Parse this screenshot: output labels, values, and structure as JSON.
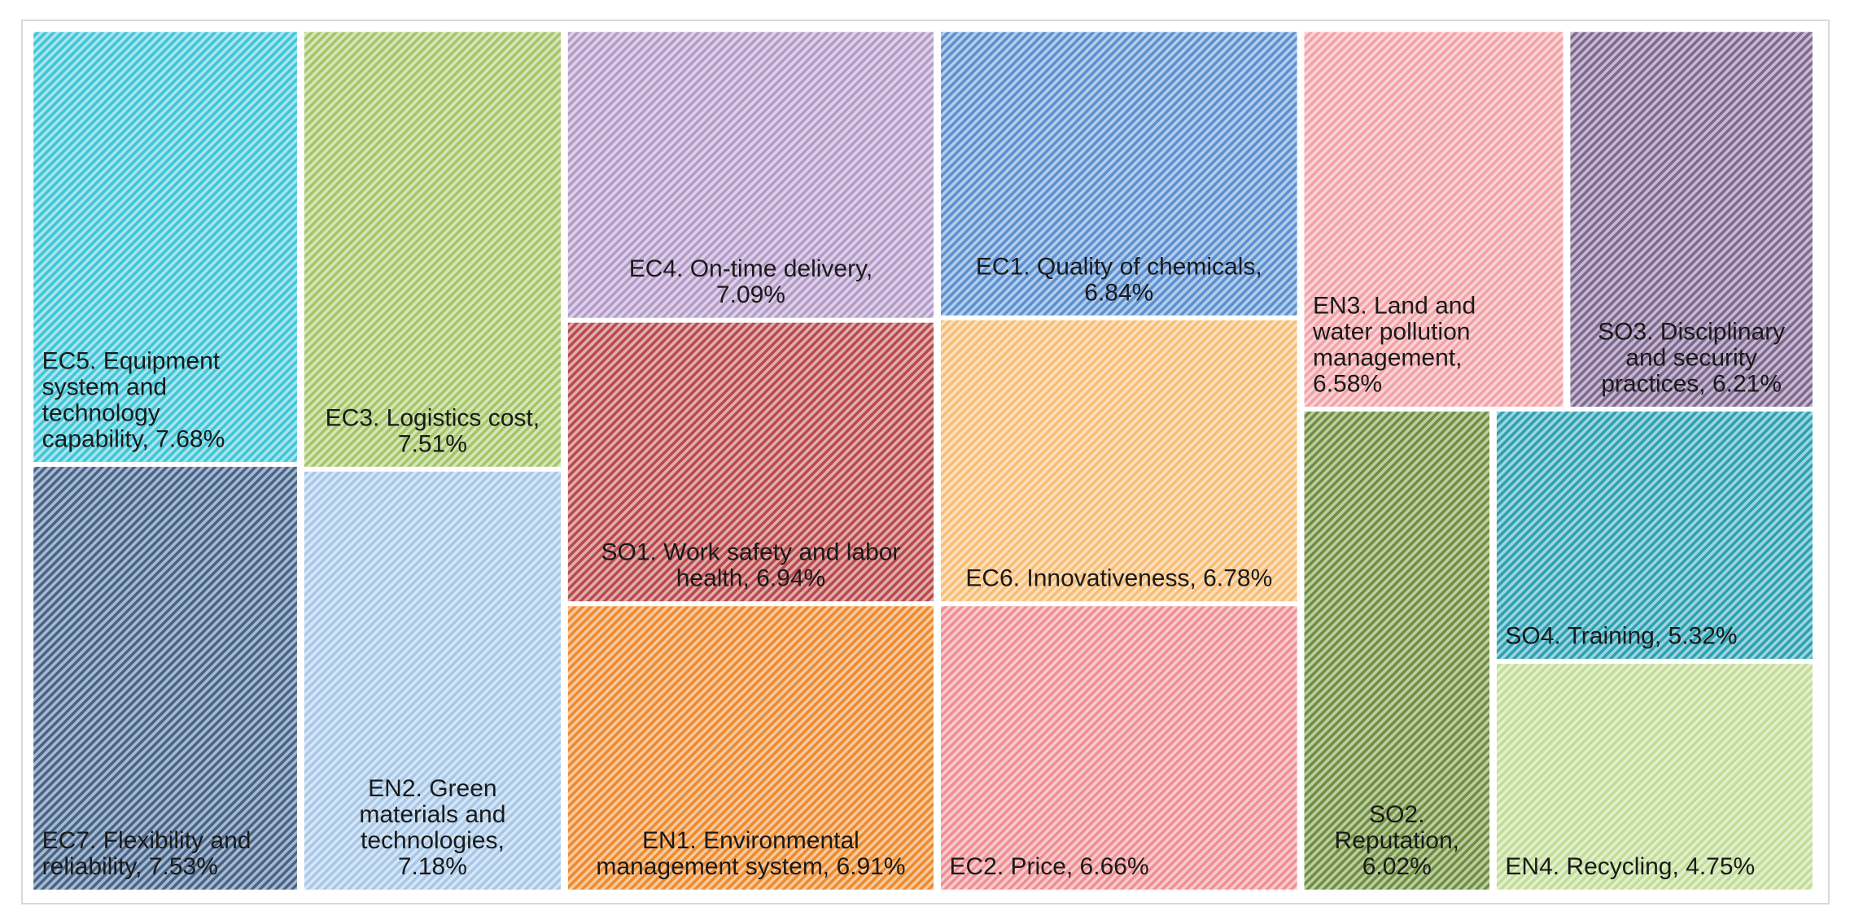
{
  "chart_data": {
    "type": "treemap",
    "title": "",
    "unit": "%",
    "items": [
      {
        "code": "EC5",
        "lines": [
          "EC5. Equipment",
          "system and",
          "technology",
          "capability, 7.68%"
        ],
        "value": 7.68,
        "color": "#3fc5d8"
      },
      {
        "code": "EC7",
        "lines": [
          "EC7. Flexibility and",
          "reliability, 7.53%"
        ],
        "value": 7.53,
        "color": "#44648c"
      },
      {
        "code": "EC3",
        "lines": [
          "EC3. Logistics cost,",
          "7.51%"
        ],
        "value": 7.51,
        "color": "#a3c566"
      },
      {
        "code": "EN2",
        "lines": [
          "EN2. Green",
          "materials and",
          "technologies,",
          "7.18%"
        ],
        "value": 7.18,
        "color": "#a6c7e8"
      },
      {
        "code": "EC4",
        "lines": [
          "EC4. On-time delivery,",
          "7.09%"
        ],
        "value": 7.09,
        "color": "#b49ac9"
      },
      {
        "code": "SO1",
        "lines": [
          "SO1. Work safety and labor",
          "health, 6.94%"
        ],
        "value": 6.94,
        "color": "#b8484a"
      },
      {
        "code": "EN1",
        "lines": [
          "EN1. Environmental",
          "management system, 6.91%"
        ],
        "value": 6.91,
        "color": "#ee8a2c"
      },
      {
        "code": "EC1",
        "lines": [
          "EC1. Quality of chemicals,",
          "6.84%"
        ],
        "value": 6.84,
        "color": "#5a8fd0"
      },
      {
        "code": "EC6",
        "lines": [
          "EC6. Innovativeness, 6.78%"
        ],
        "value": 6.78,
        "color": "#f8bc72"
      },
      {
        "code": "EC2",
        "lines": [
          "EC2. Price, 6.66%"
        ],
        "value": 6.66,
        "color": "#ef8e92"
      },
      {
        "code": "EN3",
        "lines": [
          "EN3. Land and",
          "water pollution",
          "management,",
          "6.58%"
        ],
        "value": 6.58,
        "color": "#f3a1a6"
      },
      {
        "code": "SO3",
        "lines": [
          "SO3. Disciplinary",
          "and security",
          "practices, 6.21%"
        ],
        "value": 6.21,
        "color": "#7e6691"
      },
      {
        "code": "SO2",
        "lines": [
          "SO2.",
          "Reputation,",
          "6.02%"
        ],
        "value": 6.02,
        "color": "#6d8e3b"
      },
      {
        "code": "SO4",
        "lines": [
          "SO4. Training, 5.32%"
        ],
        "value": 5.32,
        "color": "#2aa0b3"
      },
      {
        "code": "EN4",
        "lines": [
          "EN4. Recycling, 4.75%"
        ],
        "value": 4.75,
        "color": "#c1dd96"
      }
    ]
  }
}
